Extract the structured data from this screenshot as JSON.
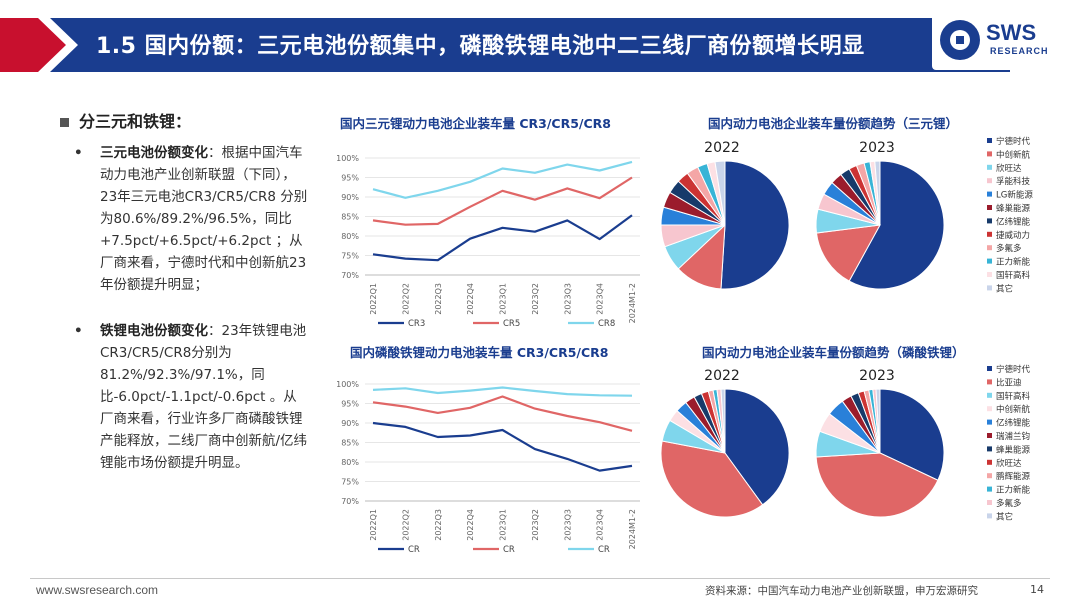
{
  "header": {
    "title": "1.5 国内份额：三元电池份额集中，磷酸铁锂电池中二三线厂商份额增长明显",
    "logo_text": "SWS",
    "logo_sub": "RESEARCH"
  },
  "left": {
    "section_title": "分三元和铁锂：",
    "bullet1_head": "三元电池份额变化",
    "bullet1_body": "：根据中国汽车动力电池产业创新联盟（下同），23年三元电池CR3/CR5/CR8 分别为80.6%/89.2%/96.5%，同比+7.5pct/+6.5pct/+6.2pct ；从厂商来看，宁德时代和中创新航23年份额提升明显；",
    "bullet2_head": "铁锂电池份额变化",
    "bullet2_body": "：23年铁锂电池CR3/CR5/CR8分别为81.2%/92.3%/97.1%，同比-6.0pct/-1.1pct/-0.6pct 。从厂商来看，行业许多厂商磷酸铁锂产能释放，二线厂商中创新航/亿纬锂能市场份额提升明显。"
  },
  "footer": {
    "url": "www.swsresearch.com",
    "source": "资料来源：中国汽车动力电池产业创新联盟，申万宏源研究",
    "page": "14"
  },
  "chart_data": [
    {
      "type": "line",
      "title": "国内三元锂动力电池企业装车量 CR3/CR5/CR8",
      "categories": [
        "2022Q1",
        "2022Q2",
        "2022Q3",
        "2022Q4",
        "2023Q1",
        "2023Q2",
        "2023Q3",
        "2023Q4",
        "2024M1-2"
      ],
      "ylim": [
        70,
        100
      ],
      "yticks": [
        "70%",
        "75%",
        "80%",
        "85%",
        "90%",
        "95%",
        "100%"
      ],
      "series": [
        {
          "name": "CR3",
          "color": "#1a3d8f",
          "values": [
            75.3,
            74.2,
            73.8,
            79.3,
            82.1,
            81.1,
            84.0,
            79.2,
            85.3
          ]
        },
        {
          "name": "CR5",
          "color": "#e06666",
          "values": [
            84.0,
            82.9,
            83.1,
            87.5,
            91.6,
            89.3,
            92.2,
            89.7,
            95.0
          ]
        },
        {
          "name": "CR8",
          "color": "#7fd6ec",
          "values": [
            92.0,
            89.8,
            91.6,
            93.9,
            97.3,
            96.2,
            98.3,
            96.8,
            99.0
          ]
        }
      ]
    },
    {
      "type": "line",
      "title": "国内磷酸铁锂动力电池装车量 CR3/CR5/CR8",
      "categories": [
        "2022Q1",
        "2022Q2",
        "2022Q3",
        "2022Q4",
        "2023Q1",
        "2023Q2",
        "2023Q3",
        "2023Q4",
        "2024M1-2"
      ],
      "ylim": [
        70,
        100
      ],
      "yticks": [
        "70%",
        "75%",
        "80%",
        "85%",
        "90%",
        "95%",
        "100%"
      ],
      "series": [
        {
          "name": "CR",
          "color": "#1a3d8f",
          "values": [
            90.0,
            89.0,
            86.4,
            86.8,
            88.2,
            83.3,
            80.8,
            77.8,
            79.0
          ]
        },
        {
          "name": "CR",
          "color": "#e06666",
          "values": [
            95.3,
            94.2,
            92.6,
            93.9,
            96.8,
            93.7,
            91.8,
            90.2,
            88.0
          ]
        },
        {
          "name": "CR",
          "color": "#7fd6ec",
          "values": [
            98.5,
            98.9,
            97.7,
            98.3,
            99.1,
            98.2,
            97.4,
            97.1,
            97.0
          ]
        }
      ]
    },
    {
      "type": "pie",
      "title": "国内动力电池企业装车量份额趋势（三元锂）",
      "pies": [
        {
          "label": "2022",
          "values": [
            51.0,
            12.0,
            6.5,
            5.5,
            4.5,
            4.0,
            3.5,
            3.0,
            3.0,
            2.5,
            2.0,
            2.5
          ]
        },
        {
          "label": "2023",
          "values": [
            58.0,
            15.0,
            6.0,
            4.0,
            3.5,
            3.0,
            2.5,
            2.0,
            2.0,
            1.5,
            1.2,
            1.3
          ]
        }
      ],
      "legend": [
        "宁德时代",
        "中创新航",
        "欣旺达",
        "孚能科技",
        "LG新能源",
        "蜂巢能源",
        "亿纬锂能",
        "捷威动力",
        "多氟多",
        "正力新能",
        "国轩高科",
        "其它"
      ],
      "colors": [
        "#1a3d8f",
        "#e06666",
        "#7fd6ec",
        "#f7c6cf",
        "#2980d9",
        "#9b1c2c",
        "#173a6a",
        "#cc3333",
        "#f4a6a6",
        "#38b4d6",
        "#fce0e4",
        "#c9d4ea"
      ]
    },
    {
      "type": "pie",
      "title": "国内动力电池企业装车量份额趋势（磷酸铁锂）",
      "pies": [
        {
          "label": "2022",
          "values": [
            40.0,
            38.0,
            5.5,
            3.0,
            3.0,
            2.5,
            2.0,
            1.8,
            1.2,
            1.0,
            1.0,
            1.0
          ]
        },
        {
          "label": "2023",
          "values": [
            32.0,
            42.0,
            6.5,
            5.0,
            4.5,
            2.5,
            2.0,
            1.5,
            1.2,
            1.0,
            0.8,
            1.0
          ]
        }
      ],
      "legend": [
        "宁德时代",
        "比亚迪",
        "国轩高科",
        "中创新航",
        "亿纬锂能",
        "瑞浦兰钧",
        "蜂巢能源",
        "欣旺达",
        "鹏辉能源",
        "正力新能",
        "多氟多",
        "其它"
      ],
      "colors": [
        "#1a3d8f",
        "#e06666",
        "#7fd6ec",
        "#fce0e4",
        "#2980d9",
        "#9b1c2c",
        "#173a6a",
        "#cc3333",
        "#f4a6a6",
        "#38b4d6",
        "#f7c6cf",
        "#c9d4ea"
      ]
    }
  ]
}
